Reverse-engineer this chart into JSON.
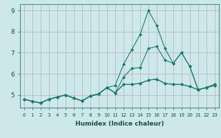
{
  "xlabel": "Humidex (Indice chaleur)",
  "ylabel": "",
  "bg_color": "#cce8e8",
  "grid_color": "#b8a8c0",
  "line_color": "#1a7a6e",
  "xlim": [
    -0.5,
    23.5
  ],
  "ylim": [
    4.4,
    9.3
  ],
  "yticks": [
    5,
    6,
    7,
    8,
    9
  ],
  "xticks": [
    0,
    1,
    2,
    3,
    4,
    5,
    6,
    7,
    8,
    9,
    10,
    11,
    12,
    13,
    14,
    15,
    16,
    17,
    18,
    19,
    20,
    21,
    22,
    23
  ],
  "lines": [
    {
      "x": [
        0,
        1,
        2,
        3,
        4,
        5,
        6,
        7,
        8,
        9,
        10,
        11,
        12,
        13,
        14,
        15,
        16,
        17,
        18,
        19,
        20,
        21,
        22,
        23
      ],
      "y": [
        4.8,
        4.7,
        4.62,
        4.8,
        4.9,
        5.0,
        4.85,
        4.72,
        4.95,
        5.05,
        5.35,
        5.45,
        6.45,
        7.15,
        7.85,
        9.0,
        8.3,
        7.2,
        6.5,
        7.0,
        6.35,
        5.25,
        5.35,
        5.45
      ]
    },
    {
      "x": [
        0,
        1,
        2,
        3,
        4,
        5,
        6,
        7,
        8,
        9,
        10,
        11,
        12,
        13,
        14,
        15,
        16,
        17,
        18,
        19,
        20,
        21,
        22,
        23
      ],
      "y": [
        4.8,
        4.7,
        4.62,
        4.8,
        4.9,
        5.0,
        4.85,
        4.72,
        4.95,
        5.05,
        5.35,
        5.1,
        5.85,
        6.25,
        6.3,
        7.2,
        7.3,
        6.65,
        6.5,
        7.0,
        6.35,
        5.25,
        5.35,
        5.45
      ]
    },
    {
      "x": [
        0,
        1,
        2,
        3,
        4,
        5,
        6,
        7,
        8,
        9,
        10,
        11,
        12,
        13,
        14,
        15,
        16,
        17,
        18,
        19,
        20,
        21,
        22,
        23
      ],
      "y": [
        4.8,
        4.7,
        4.62,
        4.8,
        4.9,
        5.0,
        4.85,
        4.72,
        4.95,
        5.05,
        5.35,
        5.1,
        5.5,
        5.5,
        5.55,
        5.7,
        5.75,
        5.55,
        5.5,
        5.5,
        5.4,
        5.25,
        5.35,
        5.5
      ]
    },
    {
      "x": [
        0,
        1,
        2,
        3,
        4,
        5,
        6,
        7,
        8,
        9,
        10,
        11,
        12,
        13,
        14,
        15,
        16,
        17,
        18,
        19,
        20,
        21,
        22,
        23
      ],
      "y": [
        4.8,
        4.7,
        4.62,
        4.8,
        4.9,
        5.0,
        4.85,
        4.72,
        4.95,
        5.05,
        5.35,
        5.1,
        5.5,
        5.5,
        5.55,
        5.7,
        5.75,
        5.55,
        5.5,
        5.5,
        5.4,
        5.25,
        5.35,
        5.5
      ]
    }
  ]
}
